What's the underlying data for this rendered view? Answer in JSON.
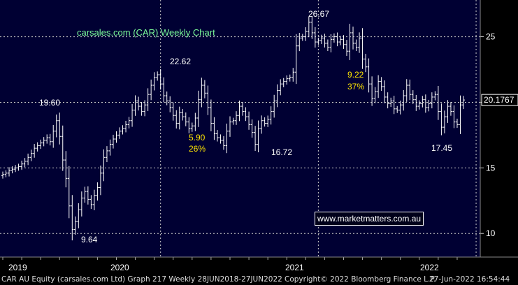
{
  "chart_data": {
    "type": "ohlc",
    "title": "carsales.com (CAR) Weekly Chart",
    "ylim": [
      8.2,
      27.8
    ],
    "yticks": [
      10,
      15,
      20,
      25
    ],
    "y_tick_labels": [
      "10",
      "15",
      "20",
      "25"
    ],
    "last_price_label": "20.1767",
    "last_price": 20.1767,
    "x_tick_labels": [
      "2019",
      "2020",
      "2021",
      "2022"
    ],
    "grid": true,
    "series": [
      {
        "values": [
          14.5,
          14.6,
          14.8,
          14.9,
          15.0,
          15.1,
          15.3,
          15.5,
          15.8,
          16.1,
          16.5,
          16.7,
          16.9,
          17.1,
          17.3,
          17.0,
          17.8,
          18.6,
          17.4,
          15.6,
          14.2,
          12.1,
          10.3,
          10.9,
          11.8,
          12.7,
          13.2,
          12.6,
          12.2,
          12.9,
          13.5,
          14.6,
          15.8,
          16.3,
          16.8,
          17.2,
          17.5,
          17.8,
          18.0,
          18.3,
          18.6,
          19.4,
          20.1,
          19.7,
          19.3,
          19.8,
          20.6,
          21.3,
          21.9,
          22.1,
          21.4,
          20.5,
          20.1,
          19.6,
          19.0,
          18.4,
          19.2,
          18.9,
          18.5,
          18.0,
          18.2,
          18.8,
          20.2,
          21.3,
          20.7,
          19.6,
          18.4,
          17.6,
          17.3,
          17.1,
          16.7,
          17.8,
          18.5,
          18.6,
          19.0,
          19.7,
          19.3,
          18.9,
          18.3,
          17.7,
          16.8,
          18.0,
          18.6,
          18.4,
          18.7,
          19.3,
          20.1,
          20.9,
          21.4,
          21.6,
          21.8,
          21.9,
          22.3,
          24.3,
          24.9,
          25.0,
          25.4,
          26.1,
          25.3,
          24.6,
          24.7,
          24.9,
          24.5,
          24.2,
          24.8,
          25.0,
          24.6,
          24.8,
          24.4,
          23.9,
          25.3,
          24.5,
          24.2,
          24.9,
          23.3,
          22.7,
          21.4,
          20.3,
          20.8,
          21.6,
          21.2,
          20.4,
          19.9,
          20.1,
          19.5,
          19.4,
          19.8,
          20.5,
          21.3,
          20.6,
          20.2,
          19.7,
          19.9,
          20.2,
          19.6,
          19.9,
          20.4,
          20.6,
          19.3,
          18.1,
          18.9,
          19.7,
          19.3,
          18.5,
          18.3,
          19.8,
          20.1767
        ]
      }
    ],
    "annotations": [
      {
        "text": "19.60",
        "color": "white"
      },
      {
        "text": "9.64",
        "color": "white"
      },
      {
        "text": "22.62",
        "color": "white"
      },
      {
        "text": "5.90",
        "color": "yellow"
      },
      {
        "text": "26%",
        "color": "yellow"
      },
      {
        "text": "16.72",
        "color": "white"
      },
      {
        "text": "26.67",
        "color": "white"
      },
      {
        "text": "9.22",
        "color": "yellow"
      },
      {
        "text": "37%",
        "color": "yellow"
      },
      {
        "text": "17.45",
        "color": "white"
      }
    ],
    "watermark": "www.marketmatters.com.au",
    "colors": {
      "background": "#000033",
      "bars": "#ffffff",
      "title": "#7CFC9A",
      "annotation_highlight": "#ffe600",
      "grid": "#cccccc"
    }
  },
  "footer": {
    "left": "CAR AU Equity (carsales.com Ltd) Graph 217  Weekly 28JUN2018-27JUN2022",
    "middle": "Copyright© 2022 Bloomberg Finance L.P.",
    "right": "27-Jun-2022 16:54:44"
  }
}
